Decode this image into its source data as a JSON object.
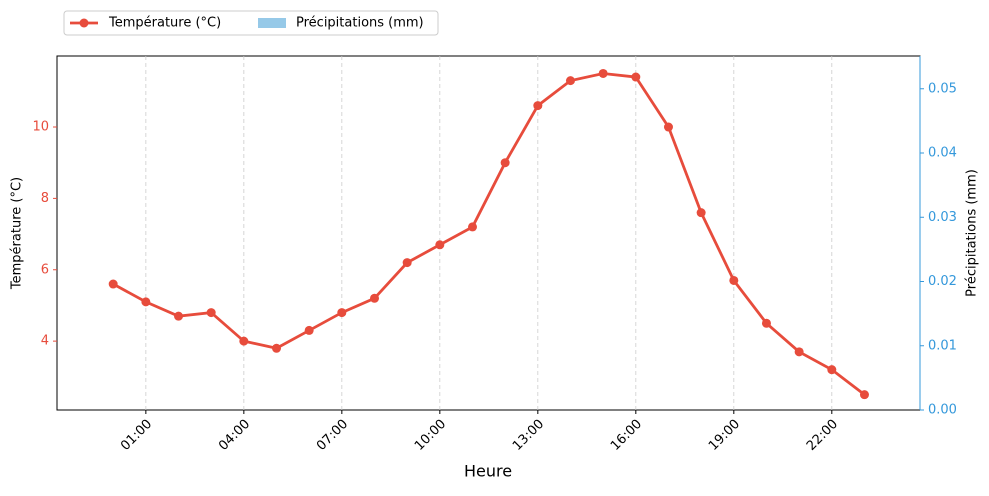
{
  "chart_data": {
    "type": "line",
    "x": [
      0,
      1,
      2,
      3,
      4,
      5,
      6,
      7,
      8,
      9,
      10,
      11,
      12,
      13,
      14,
      15,
      16,
      17,
      18,
      19,
      20,
      21,
      22,
      23
    ],
    "xlabel": "Heure",
    "ylabel": "Température (°C)",
    "y2label": "Précipitations (mm)",
    "xlim": [
      -1.72,
      24.7
    ],
    "xticks": [
      {
        "value": 1,
        "label": "01:00"
      },
      {
        "value": 4,
        "label": "04:00"
      },
      {
        "value": 7,
        "label": "07:00"
      },
      {
        "value": 10,
        "label": "10:00"
      },
      {
        "value": 13,
        "label": "13:00"
      },
      {
        "value": 16,
        "label": "16:00"
      },
      {
        "value": 19,
        "label": "19:00"
      },
      {
        "value": 22,
        "label": "22:00"
      }
    ],
    "ylim": [
      2.07,
      11.99
    ],
    "yticks": [
      4,
      6,
      8,
      10
    ],
    "y2lim": [
      0,
      0.0551
    ],
    "y2ticks": [
      {
        "value": 0,
        "label": "0.00"
      },
      0.01,
      0.02,
      0.03,
      0.04,
      0.05
    ],
    "grid": "x",
    "legend": "upper left",
    "series": [
      {
        "name": "Température (°C)",
        "color": "#e74c3c",
        "type": "line",
        "values": [
          5.6,
          5.1,
          4.7,
          4.8,
          4.0,
          3.8,
          4.3,
          4.8,
          5.2,
          6.2,
          6.7,
          7.2,
          9.0,
          10.6,
          11.3,
          11.5,
          11.4,
          10.0,
          7.6,
          5.7,
          4.5,
          3.7,
          3.2,
          2.5
        ]
      },
      {
        "name": "Précipitations (mm)",
        "color": "#96c9e8",
        "type": "bar",
        "axis": "y2",
        "values": [
          0,
          0,
          0,
          0,
          0,
          0,
          0,
          0,
          0,
          0,
          0,
          0,
          0,
          0,
          0,
          0,
          0,
          0,
          0,
          0,
          0,
          0,
          0,
          0
        ]
      }
    ]
  }
}
